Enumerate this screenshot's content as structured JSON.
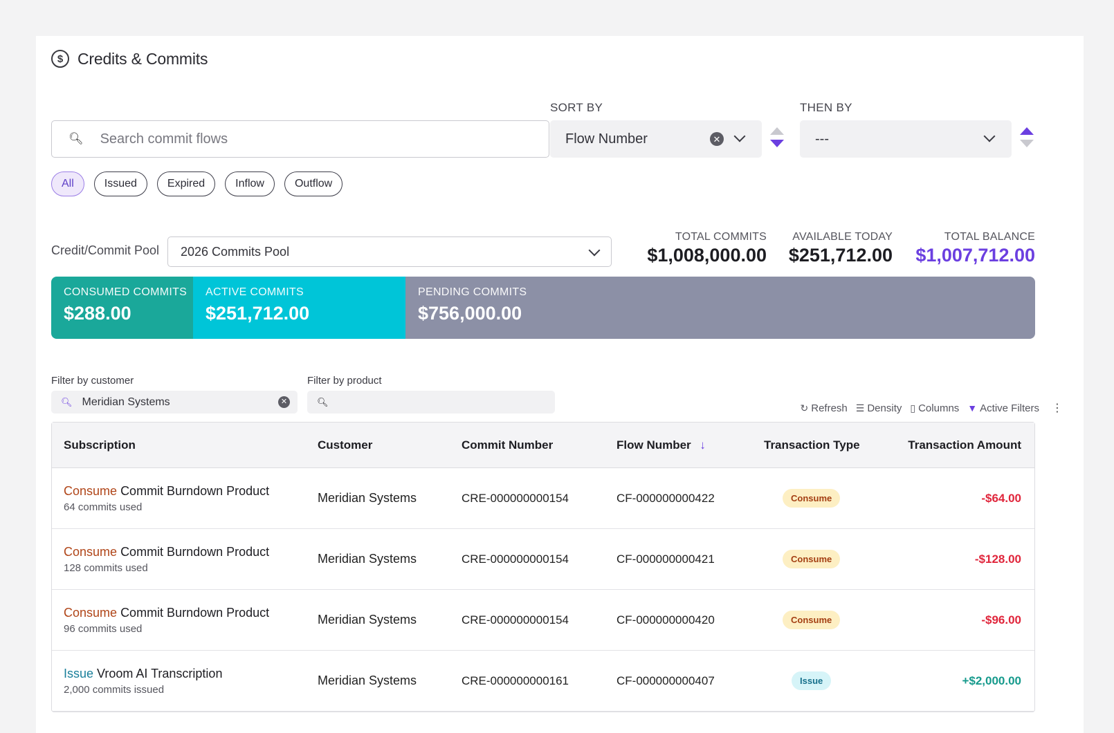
{
  "header": {
    "title": "Credits & Commits",
    "icon": "dollar-circle-icon"
  },
  "search": {
    "placeholder": "Search commit flows",
    "value": ""
  },
  "chips": [
    {
      "label": "All",
      "active": true
    },
    {
      "label": "Issued",
      "active": false
    },
    {
      "label": "Expired",
      "active": false
    },
    {
      "label": "Inflow",
      "active": false
    },
    {
      "label": "Outflow",
      "active": false
    }
  ],
  "sort": {
    "sort_by_label": "SORT BY",
    "sort_by_value": "Flow Number",
    "sort_direction": "descending",
    "then_by_label": "THEN BY",
    "then_by_value": "---",
    "then_direction": "ascending"
  },
  "pool": {
    "label": "Credit/Commit Pool",
    "value": "2026 Commits Pool"
  },
  "stats": {
    "total_commits_label": "TOTAL COMMITS",
    "total_commits": "$1,008,000.00",
    "available_today_label": "AVAILABLE TODAY",
    "available_today": "$251,712.00",
    "total_balance_label": "TOTAL BALANCE",
    "total_balance": "$1,007,712.00"
  },
  "commit_bar": {
    "consumed_label": "CONSUMED COMMITS",
    "consumed_value": "$288.00",
    "active_label": "ACTIVE COMMITS",
    "active_value": "$251,712.00",
    "pending_label": "PENDING COMMITS",
    "pending_value": "$756,000.00"
  },
  "filters": {
    "customer_label": "Filter by customer",
    "customer_value": "Meridian Systems",
    "product_label": "Filter by product",
    "product_value": ""
  },
  "toolbar": {
    "refresh": "Refresh",
    "density": "Density",
    "columns": "Columns",
    "active_filters": "Active Filters"
  },
  "table": {
    "columns": [
      "Subscription",
      "Customer",
      "Commit Number",
      "Flow Number",
      "Transaction Type",
      "Transaction Amount"
    ],
    "sorted_column": "Flow Number",
    "rows": [
      {
        "sub_keyword": "Consume",
        "sub_product": "Commit Burndown Product",
        "sub_note": "64 commits used",
        "customer": "Meridian Systems",
        "commit_number": "CRE-000000000154",
        "flow_number": "CF-000000000422",
        "type": "Consume",
        "amount": "-$64.00"
      },
      {
        "sub_keyword": "Consume",
        "sub_product": "Commit Burndown Product",
        "sub_note": "128 commits used",
        "customer": "Meridian Systems",
        "commit_number": "CRE-000000000154",
        "flow_number": "CF-000000000421",
        "type": "Consume",
        "amount": "-$128.00"
      },
      {
        "sub_keyword": "Consume",
        "sub_product": "Commit Burndown Product",
        "sub_note": "96 commits used",
        "customer": "Meridian Systems",
        "commit_number": "CRE-000000000154",
        "flow_number": "CF-000000000420",
        "type": "Consume",
        "amount": "-$96.00"
      },
      {
        "sub_keyword": "Issue",
        "sub_product": "Vroom AI Transcription",
        "sub_note": "2,000 commits issued",
        "customer": "Meridian Systems",
        "commit_number": "CRE-000000000161",
        "flow_number": "CF-000000000407",
        "type": "Issue",
        "amount": "+$2,000.00"
      }
    ]
  },
  "colors": {
    "accent": "#6b3fe0",
    "consumed": "#1aa89a",
    "active": "#00c5d8",
    "pending": "#8c90a6",
    "negative": "#e0253b",
    "positive": "#169a8c"
  }
}
